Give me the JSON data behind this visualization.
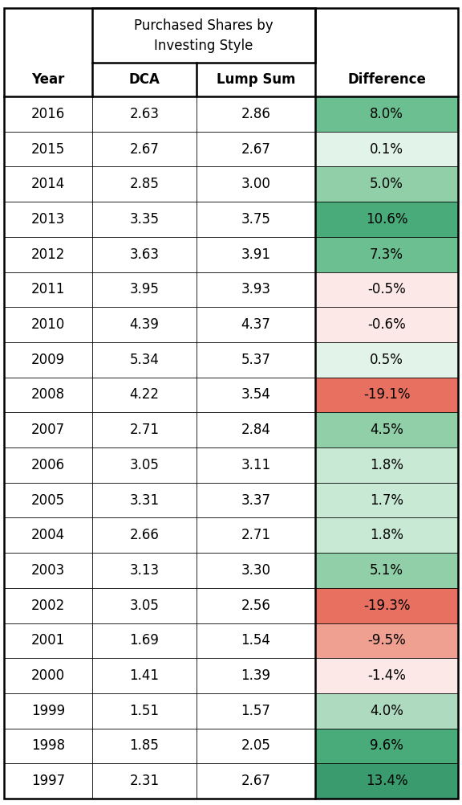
{
  "title_line1": "Purchased Shares by",
  "title_line2": "Investing Style",
  "col_headers": [
    "Year",
    "DCA",
    "Lump Sum",
    "Difference"
  ],
  "rows": [
    {
      "year": 2016,
      "dca": "2.63",
      "lump_sum": "2.86",
      "diff": "8.0%",
      "diff_val": 8.0
    },
    {
      "year": 2015,
      "dca": "2.67",
      "lump_sum": "2.67",
      "diff": "0.1%",
      "diff_val": 0.1
    },
    {
      "year": 2014,
      "dca": "2.85",
      "lump_sum": "3.00",
      "diff": "5.0%",
      "diff_val": 5.0
    },
    {
      "year": 2013,
      "dca": "3.35",
      "lump_sum": "3.75",
      "diff": "10.6%",
      "diff_val": 10.6
    },
    {
      "year": 2012,
      "dca": "3.63",
      "lump_sum": "3.91",
      "diff": "7.3%",
      "diff_val": 7.3
    },
    {
      "year": 2011,
      "dca": "3.95",
      "lump_sum": "3.93",
      "diff": "-0.5%",
      "diff_val": -0.5
    },
    {
      "year": 2010,
      "dca": "4.39",
      "lump_sum": "4.37",
      "diff": "-0.6%",
      "diff_val": -0.6
    },
    {
      "year": 2009,
      "dca": "5.34",
      "lump_sum": "5.37",
      "diff": "0.5%",
      "diff_val": 0.5
    },
    {
      "year": 2008,
      "dca": "4.22",
      "lump_sum": "3.54",
      "diff": "-19.1%",
      "diff_val": -19.1
    },
    {
      "year": 2007,
      "dca": "2.71",
      "lump_sum": "2.84",
      "diff": "4.5%",
      "diff_val": 4.5
    },
    {
      "year": 2006,
      "dca": "3.05",
      "lump_sum": "3.11",
      "diff": "1.8%",
      "diff_val": 1.8
    },
    {
      "year": 2005,
      "dca": "3.31",
      "lump_sum": "3.37",
      "diff": "1.7%",
      "diff_val": 1.7
    },
    {
      "year": 2004,
      "dca": "2.66",
      "lump_sum": "2.71",
      "diff": "1.8%",
      "diff_val": 1.8
    },
    {
      "year": 2003,
      "dca": "3.13",
      "lump_sum": "3.30",
      "diff": "5.1%",
      "diff_val": 5.1
    },
    {
      "year": 2002,
      "dca": "3.05",
      "lump_sum": "2.56",
      "diff": "-19.3%",
      "diff_val": -19.3
    },
    {
      "year": 2001,
      "dca": "1.69",
      "lump_sum": "1.54",
      "diff": "-9.5%",
      "diff_val": -9.5
    },
    {
      "year": 2000,
      "dca": "1.41",
      "lump_sum": "1.39",
      "diff": "-1.4%",
      "diff_val": -1.4
    },
    {
      "year": 1999,
      "dca": "1.51",
      "lump_sum": "1.57",
      "diff": "4.0%",
      "diff_val": 4.0
    },
    {
      "year": 1998,
      "dca": "1.85",
      "lump_sum": "2.05",
      "diff": "9.6%",
      "diff_val": 9.6
    },
    {
      "year": 1997,
      "dca": "2.31",
      "lump_sum": "2.67",
      "diff": "13.4%",
      "diff_val": 13.4
    }
  ],
  "diff_colors": {
    "very_dark_green": "#3a9b6f",
    "dark_green": "#4aab7a",
    "medium_green": "#6bbf90",
    "light_green": "#90cfa8",
    "lighter_green": "#aedbbf",
    "pale_green": "#c8e9d4",
    "very_pale_green": "#e2f4ea",
    "near_white_green": "#f0faf4",
    "near_white_red": "#fce8e6",
    "light_red": "#f0a090",
    "medium_red": "#e87060",
    "strong_red": "#e06050"
  },
  "bold_lw": 1.8,
  "thin_lw": 0.6,
  "title_fontsize": 12,
  "header_fontsize": 12,
  "data_fontsize": 12
}
